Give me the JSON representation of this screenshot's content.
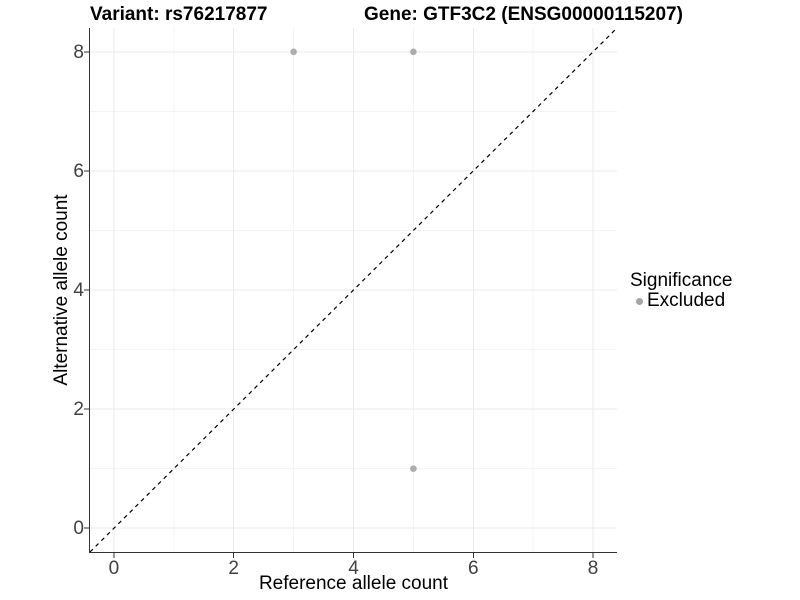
{
  "chart_data": {
    "type": "scatter",
    "titles": {
      "left": "Variant: rs76217877",
      "right": "Gene: GTF3C2 (ENSG00000115207)"
    },
    "xlabel": "Reference allele count",
    "ylabel": "Alternative allele count",
    "xlim": [
      -0.4,
      8.4
    ],
    "ylim": [
      -0.4,
      8.4
    ],
    "x_ticks": [
      0,
      2,
      4,
      6,
      8
    ],
    "y_ticks": [
      0,
      2,
      4,
      6,
      8
    ],
    "x_minor_ticks": [
      1,
      3,
      5,
      7
    ],
    "y_minor_ticks": [
      1,
      3,
      5,
      7
    ],
    "grid": true,
    "identity_line": {
      "style": "dashed",
      "color": "#000000",
      "from": [
        -0.4,
        -0.4
      ],
      "to": [
        8.4,
        8.4
      ]
    },
    "series": [
      {
        "name": "Excluded",
        "color": "#adadad",
        "points": [
          [
            3,
            8
          ],
          [
            5,
            8
          ],
          [
            5,
            1
          ]
        ]
      }
    ],
    "legend": {
      "title": "Significance",
      "position": "right",
      "entries": [
        {
          "label": "Excluded",
          "color": "#a6a6a6"
        }
      ]
    },
    "colors": {
      "background": "#ffffff",
      "grid_major": "#ebebeb",
      "grid_minor": "#f4f4f4",
      "axis_line": "#333333",
      "tick_label": "#404040",
      "point": "#adadad"
    }
  }
}
